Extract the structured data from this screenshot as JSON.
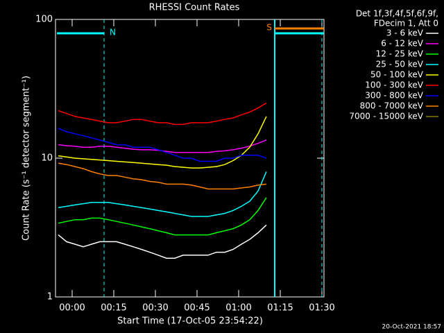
{
  "chart_data": {
    "type": "line",
    "title": "RHESSI Count Rates",
    "xlabel": "Start Time (17-Oct-05 23:54:22)",
    "ylabel": "Count Rate (s⁻¹ detector segment⁻¹)",
    "header": [
      "Det 1f,3f,4f,5f,6f,9f,",
      "FDecim 1, Att 0"
    ],
    "footer": "20-Oct-2021 18:57",
    "log_y": true,
    "x": [
      -5,
      -2,
      1,
      4,
      7,
      10,
      13,
      16,
      19,
      22,
      25,
      28,
      31,
      34,
      37,
      40,
      43,
      46,
      49,
      52,
      55,
      58,
      61,
      64,
      67,
      70
    ],
    "xlim": [
      -6,
      90.75
    ],
    "xticks": [
      {
        "value": 0,
        "label": "00:00"
      },
      {
        "value": 15,
        "label": "00:15"
      },
      {
        "value": 30,
        "label": "00:30"
      },
      {
        "value": 45,
        "label": "00:45"
      },
      {
        "value": 60,
        "label": "01:00"
      },
      {
        "value": 75,
        "label": "01:15"
      },
      {
        "value": 90,
        "label": "01:30"
      }
    ],
    "ylim": [
      1,
      100
    ],
    "yticks": [
      1,
      10,
      100
    ],
    "markers": [
      {
        "x": 11.5,
        "style": "dashed",
        "color": "#00ffff"
      },
      {
        "x": 73,
        "style": "solid",
        "color": "#00ffff"
      },
      {
        "x": 90,
        "style": "dashed",
        "color": "#00ffff"
      }
    ],
    "flags": [
      {
        "label": "N",
        "x": 11.5,
        "color": "#00ffff"
      },
      {
        "label": "S",
        "x": 73,
        "color": "#ff8000"
      }
    ],
    "series": [
      {
        "name": "3 - 6 keV",
        "color": "#ffffff",
        "values": [
          2.8,
          2.5,
          2.4,
          2.3,
          2.4,
          2.5,
          2.5,
          2.5,
          2.4,
          2.3,
          2.2,
          2.1,
          2.0,
          1.9,
          1.9,
          2.0,
          2.0,
          2.0,
          2.0,
          2.1,
          2.1,
          2.2,
          2.4,
          2.6,
          2.9,
          3.3
        ]
      },
      {
        "name": "6 - 12 keV",
        "color": "#ff00ff",
        "values": [
          12.5,
          12.3,
          12.2,
          12.0,
          12.0,
          12.2,
          12.2,
          12.0,
          11.8,
          11.6,
          11.5,
          11.5,
          11.4,
          11.2,
          11.0,
          11.0,
          11.0,
          11.0,
          11.0,
          11.2,
          11.3,
          11.5,
          11.8,
          12.2,
          12.8,
          13.5
        ]
      },
      {
        "name": "12 - 25 keV",
        "color": "#00ff00",
        "values": [
          3.4,
          3.5,
          3.6,
          3.6,
          3.7,
          3.7,
          3.6,
          3.5,
          3.4,
          3.3,
          3.2,
          3.1,
          3.0,
          2.9,
          2.8,
          2.8,
          2.8,
          2.8,
          2.8,
          2.9,
          3.0,
          3.1,
          3.3,
          3.6,
          4.2,
          5.2
        ]
      },
      {
        "name": "25 - 50 keV",
        "color": "#00ffff",
        "values": [
          4.4,
          4.5,
          4.6,
          4.7,
          4.8,
          4.8,
          4.8,
          4.7,
          4.6,
          4.5,
          4.4,
          4.3,
          4.2,
          4.1,
          4.0,
          3.9,
          3.8,
          3.8,
          3.8,
          3.9,
          4.0,
          4.2,
          4.5,
          4.9,
          5.8,
          8.0
        ]
      },
      {
        "name": "50 - 100 keV",
        "color": "#ffff00",
        "values": [
          10.4,
          10.2,
          10.0,
          9.9,
          9.8,
          9.7,
          9.6,
          9.5,
          9.4,
          9.3,
          9.2,
          9.1,
          9.0,
          8.9,
          8.7,
          8.6,
          8.5,
          8.5,
          8.6,
          8.7,
          9.0,
          9.6,
          10.5,
          12.0,
          15.0,
          20.0
        ]
      },
      {
        "name": "100 - 300 keV",
        "color": "#ff0000",
        "values": [
          22,
          21,
          20,
          19.5,
          19,
          18.5,
          18,
          18,
          18.5,
          19,
          19,
          18.5,
          18,
          18,
          17.5,
          17.5,
          18,
          18,
          18,
          18.5,
          19,
          19.5,
          20.5,
          21.5,
          23,
          25
        ]
      },
      {
        "name": "300 - 800 keV",
        "color": "#0000ff",
        "values": [
          16.4,
          15.5,
          15,
          14.5,
          14,
          13.5,
          13,
          12.5,
          12.5,
          12,
          12,
          12,
          11.5,
          11,
          10.5,
          10,
          10,
          9.5,
          9.5,
          9.5,
          10,
          10,
          10.5,
          10.5,
          10.5,
          10
        ]
      },
      {
        "name": "800 - 7000 keV",
        "color": "#ff8000",
        "values": [
          9.2,
          9.0,
          8.7,
          8.4,
          8.0,
          7.7,
          7.5,
          7.5,
          7.3,
          7.1,
          7.0,
          6.8,
          6.7,
          6.5,
          6.5,
          6.5,
          6.4,
          6.2,
          6.0,
          6.0,
          6.0,
          6.0,
          6.1,
          6.2,
          6.4,
          6.5
        ]
      },
      {
        "name": "7000 - 15000 keV",
        "color": "#808000",
        "values": [
          null,
          null,
          null,
          null,
          null,
          null,
          null,
          null,
          null,
          null,
          null,
          null,
          null,
          null,
          null,
          null,
          null,
          null,
          null,
          null,
          null,
          null,
          null,
          null,
          null,
          null
        ]
      }
    ]
  }
}
